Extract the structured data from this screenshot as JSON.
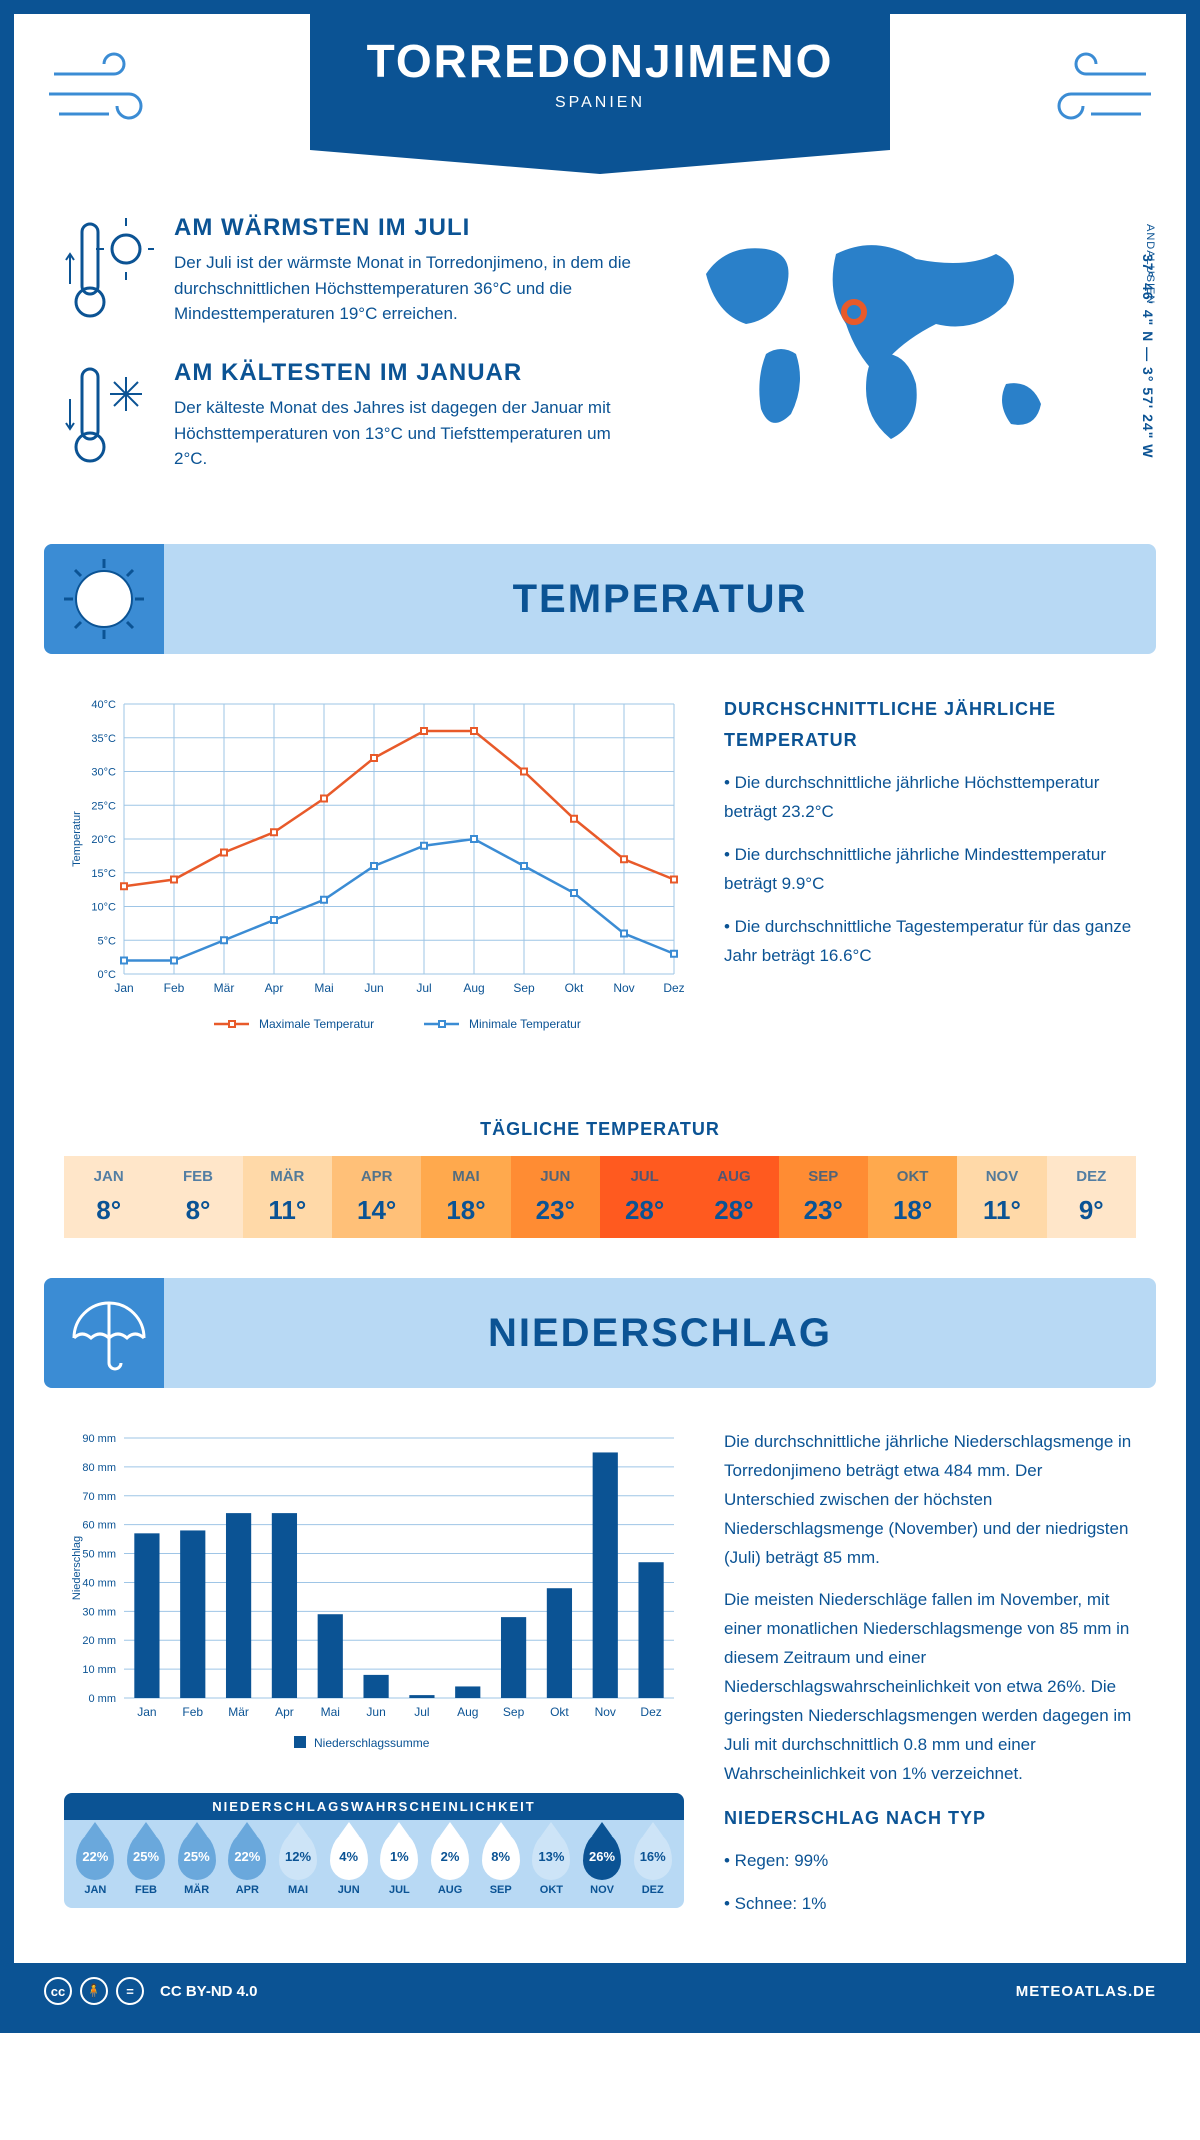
{
  "header": {
    "city": "TORREDONJIMENO",
    "country": "SPANIEN"
  },
  "location": {
    "coords": "37° 46' 4\" N — 3° 57' 24\" W",
    "region": "ANDALUSIEN"
  },
  "warm": {
    "title": "AM WÄRMSTEN IM JULI",
    "text": "Der Juli ist der wärmste Monat in Torredonjimeno, in dem die durchschnittlichen Höchsttemperaturen 36°C und die Mindesttemperaturen 19°C erreichen."
  },
  "cold": {
    "title": "AM KÄLTESTEN IM JANUAR",
    "text": "Der kälteste Monat des Jahres ist dagegen der Januar mit Höchsttemperaturen von 13°C und Tiefsttemperaturen um 2°C."
  },
  "temp_section": "TEMPERATUR",
  "temp_chart": {
    "type": "line",
    "months": [
      "Jan",
      "Feb",
      "Mär",
      "Apr",
      "Mai",
      "Jun",
      "Jul",
      "Aug",
      "Sep",
      "Okt",
      "Nov",
      "Dez"
    ],
    "max": [
      13,
      14,
      18,
      21,
      26,
      32,
      36,
      36,
      30,
      23,
      17,
      14
    ],
    "min": [
      2,
      2,
      5,
      8,
      11,
      16,
      19,
      20,
      16,
      12,
      6,
      3
    ],
    "max_color": "#e85a2a",
    "min_color": "#3b8cd4",
    "grid_color": "#9ec5e6",
    "ylabel": "Temperatur",
    "ylim": [
      0,
      40
    ],
    "ystep": 5,
    "legend_max": "Maximale Temperatur",
    "legend_min": "Minimale Temperatur"
  },
  "temp_text": {
    "title": "DURCHSCHNITTLICHE JÄHRLICHE TEMPERATUR",
    "b1": "• Die durchschnittliche jährliche Höchsttemperatur beträgt 23.2°C",
    "b2": "• Die durchschnittliche jährliche Mindesttemperatur beträgt 9.9°C",
    "b3": "• Die durchschnittliche Tagestemperatur für das ganze Jahr beträgt 16.6°C"
  },
  "daily_temp": {
    "title": "TÄGLICHE TEMPERATUR",
    "months": [
      "JAN",
      "FEB",
      "MÄR",
      "APR",
      "MAI",
      "JUN",
      "JUL",
      "AUG",
      "SEP",
      "OKT",
      "NOV",
      "DEZ"
    ],
    "values": [
      "8°",
      "8°",
      "11°",
      "14°",
      "18°",
      "23°",
      "28°",
      "28°",
      "23°",
      "18°",
      "11°",
      "9°"
    ],
    "colors": [
      "#ffe6c9",
      "#ffe6c9",
      "#ffd9a8",
      "#ffc078",
      "#ffa94d",
      "#ff8c33",
      "#ff5a1f",
      "#ff5a1f",
      "#ff8c33",
      "#ffa94d",
      "#ffd9a8",
      "#ffe6c9"
    ]
  },
  "precip_section": "NIEDERSCHLAG",
  "precip_chart": {
    "type": "bar",
    "months": [
      "Jan",
      "Feb",
      "Mär",
      "Apr",
      "Mai",
      "Jun",
      "Jul",
      "Aug",
      "Sep",
      "Okt",
      "Nov",
      "Dez"
    ],
    "values": [
      57,
      58,
      64,
      64,
      29,
      8,
      1,
      4,
      28,
      38,
      85,
      47
    ],
    "bar_color": "#0b5394",
    "grid_color": "#9ec5e6",
    "ylabel": "Niederschlag",
    "ylim": [
      0,
      90
    ],
    "ystep": 10,
    "legend": "Niederschlagssumme"
  },
  "precip_text": {
    "p1": "Die durchschnittliche jährliche Niederschlagsmenge in Torredonjimeno beträgt etwa 484 mm. Der Unterschied zwischen der höchsten Niederschlagsmenge (November) und der niedrigsten (Juli) beträgt 85 mm.",
    "p2": "Die meisten Niederschläge fallen im November, mit einer monatlichen Niederschlagsmenge von 85 mm in diesem Zeitraum und einer Niederschlagswahrscheinlichkeit von etwa 26%. Die geringsten Niederschlagsmengen werden dagegen im Juli mit durchschnittlich 0.8 mm und einer Wahrscheinlichkeit von 1% verzeichnet.",
    "type_title": "NIEDERSCHLAG NACH TYP",
    "type1": "• Regen: 99%",
    "type2": "• Schnee: 1%"
  },
  "precip_prob": {
    "title": "NIEDERSCHLAGSWAHRSCHEINLICHKEIT",
    "months": [
      "JAN",
      "FEB",
      "MÄR",
      "APR",
      "MAI",
      "JUN",
      "JUL",
      "AUG",
      "SEP",
      "OKT",
      "NOV",
      "DEZ"
    ],
    "values": [
      "22%",
      "25%",
      "25%",
      "22%",
      "12%",
      "4%",
      "1%",
      "2%",
      "8%",
      "13%",
      "26%",
      "16%"
    ]
  },
  "footer": {
    "license": "CC BY-ND 4.0",
    "site": "METEOATLAS.DE"
  }
}
